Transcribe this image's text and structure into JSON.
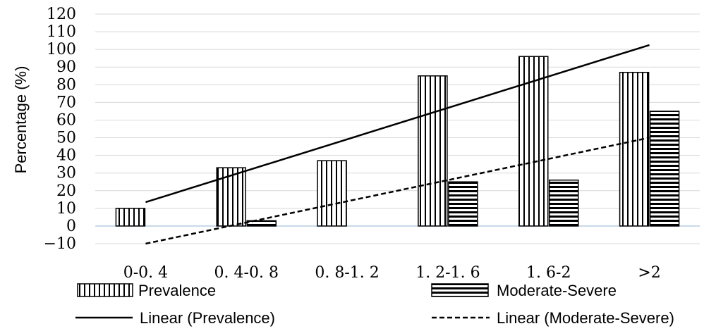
{
  "chart_data": {
    "type": "bar",
    "categories": [
      "0-0. 4",
      "0. 4-0. 8",
      "0. 8-1. 2",
      "1. 2-1. 6",
      "1. 6-2",
      ">2"
    ],
    "series": [
      {
        "name": "Prevalence",
        "pattern": "vertical-stripes",
        "values": [
          10,
          33,
          37,
          85,
          96,
          87
        ]
      },
      {
        "name": "Moderate-Severe",
        "pattern": "horizontal-stripes",
        "values": [
          0,
          3,
          0,
          25,
          26,
          65
        ]
      }
    ],
    "trendlines": [
      {
        "name": "Linear (Prevalence)",
        "style": "solid",
        "start": 13.5,
        "end": 102.5
      },
      {
        "name": "Linear (Moderate-Severe)",
        "style": "dashed",
        "start": -10,
        "end": 50
      }
    ],
    "title": "",
    "xlabel": "",
    "ylabel": "Percentage (%)",
    "ylim": [
      -10,
      120
    ],
    "yticks": [
      120,
      110,
      100,
      90,
      80,
      70,
      60,
      50,
      40,
      30,
      20,
      10,
      0,
      -10
    ],
    "grid": true,
    "legend_placement": "bottom",
    "colors": {
      "bar_stroke": "#000000",
      "grid": "#d9d9d9",
      "zero_line": "#c9d7ea",
      "text": "#000000"
    }
  }
}
